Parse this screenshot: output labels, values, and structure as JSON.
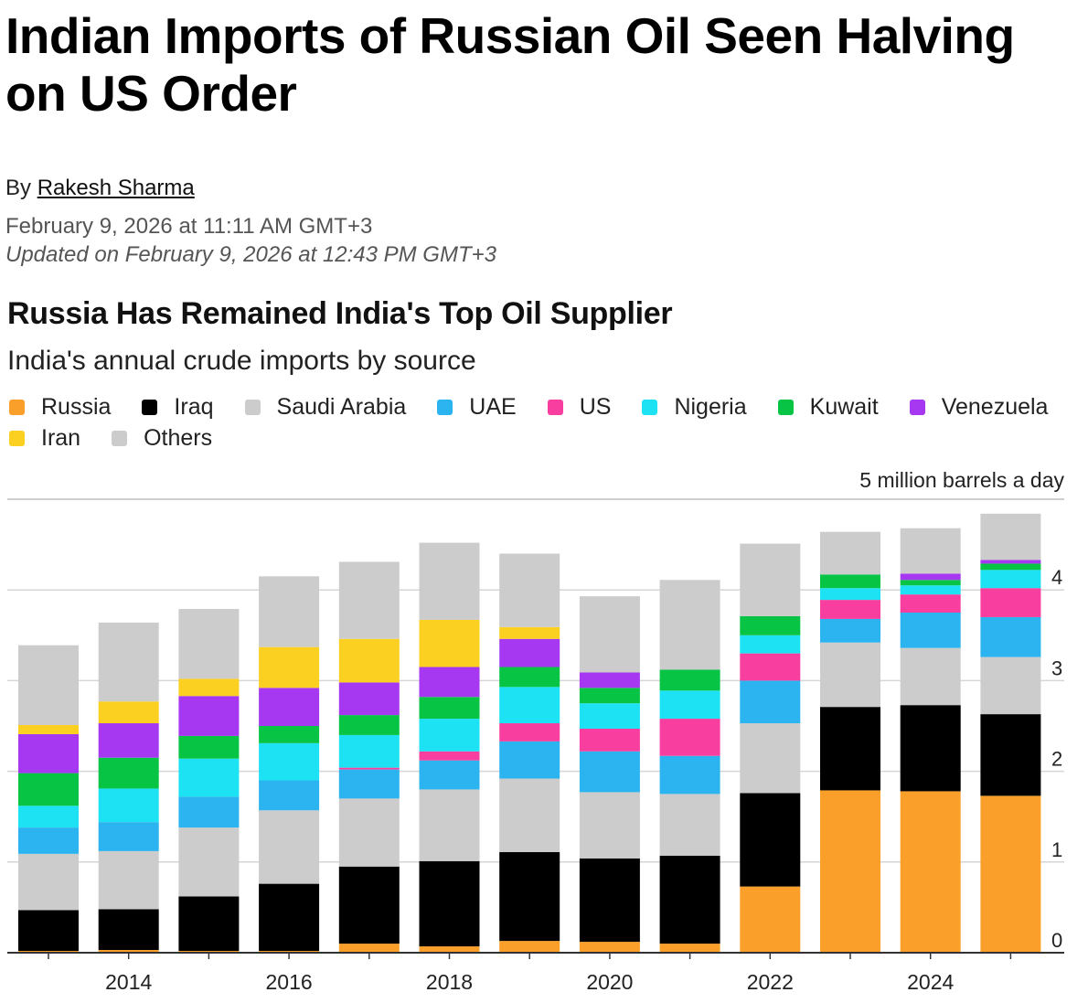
{
  "article": {
    "headline": "Indian Imports of Russian Oil Seen Halving on US Order",
    "byline_prefix": "By ",
    "author": "Rakesh Sharma",
    "published": "February 9, 2026 at 11:11 AM GMT+3",
    "updated": "Updated on February 9, 2026 at 12:43 PM GMT+3"
  },
  "chart_data": {
    "type": "bar",
    "stacked": true,
    "title": "Russia Has Remained India's Top Oil Supplier",
    "subtitle": "India's annual crude imports by source",
    "unit_label": "5 million barrels a day",
    "ylim": [
      0,
      5
    ],
    "yticks": [
      0,
      1,
      2,
      3,
      4
    ],
    "ytick_labels": [
      "0",
      "1",
      "2",
      "3",
      "4"
    ],
    "y_axis_side": "right",
    "grid": true,
    "legend_position": "top",
    "x": [
      2013,
      2014,
      2015,
      2016,
      2017,
      2018,
      2019,
      2020,
      2021,
      2022,
      2023,
      2024,
      2025
    ],
    "xtick_labels": [
      {
        "year": 2014,
        "label": "2014"
      },
      {
        "year": 2016,
        "label": "2016"
      },
      {
        "year": 2018,
        "label": "2018"
      },
      {
        "year": 2020,
        "label": "2020"
      },
      {
        "year": 2022,
        "label": "2022"
      },
      {
        "year": 2024,
        "label": "2024"
      }
    ],
    "series": [
      {
        "name": "Russia",
        "color": "#FAA02A",
        "values": [
          0.02,
          0.03,
          0.02,
          0.02,
          0.1,
          0.07,
          0.13,
          0.12,
          0.1,
          0.73,
          1.79,
          1.78,
          1.73
        ]
      },
      {
        "name": "Iraq",
        "color": "#000000",
        "values": [
          0.45,
          0.45,
          0.6,
          0.74,
          0.85,
          0.94,
          0.98,
          0.92,
          0.97,
          1.03,
          0.92,
          0.95,
          0.9
        ]
      },
      {
        "name": "Saudi Arabia",
        "color": "#CCCCCC",
        "values": [
          0.62,
          0.64,
          0.76,
          0.81,
          0.75,
          0.79,
          0.81,
          0.73,
          0.68,
          0.77,
          0.71,
          0.63,
          0.63
        ]
      },
      {
        "name": "UAE",
        "color": "#2CB4F0",
        "values": [
          0.29,
          0.32,
          0.34,
          0.33,
          0.32,
          0.32,
          0.41,
          0.45,
          0.42,
          0.47,
          0.26,
          0.39,
          0.44
        ]
      },
      {
        "name": "US",
        "color": "#F83E9E",
        "values": [
          0,
          0,
          0,
          0,
          0.02,
          0.1,
          0.2,
          0.25,
          0.41,
          0.3,
          0.21,
          0.2,
          0.32
        ]
      },
      {
        "name": "Nigeria",
        "color": "#1CE2F4",
        "values": [
          0.24,
          0.37,
          0.42,
          0.41,
          0.36,
          0.36,
          0.4,
          0.28,
          0.31,
          0.2,
          0.13,
          0.1,
          0.2
        ]
      },
      {
        "name": "Kuwait",
        "color": "#08C444",
        "values": [
          0.36,
          0.34,
          0.25,
          0.19,
          0.22,
          0.24,
          0.22,
          0.17,
          0.23,
          0.21,
          0.15,
          0.06,
          0.07
        ]
      },
      {
        "name": "Venezuela",
        "color": "#A638F2",
        "values": [
          0.43,
          0.38,
          0.44,
          0.42,
          0.36,
          0.33,
          0.31,
          0.17,
          0,
          0,
          0,
          0.07,
          0.04
        ]
      },
      {
        "name": "Iran",
        "color": "#FCD020",
        "values": [
          0.1,
          0.24,
          0.19,
          0.45,
          0.48,
          0.52,
          0.13,
          0,
          0,
          0,
          0,
          0,
          0
        ]
      },
      {
        "name": "Others",
        "color": "#CCCCCC",
        "values": [
          0.88,
          0.87,
          0.77,
          0.78,
          0.85,
          0.85,
          0.81,
          0.84,
          0.99,
          0.8,
          0.47,
          0.5,
          0.51
        ]
      }
    ]
  }
}
